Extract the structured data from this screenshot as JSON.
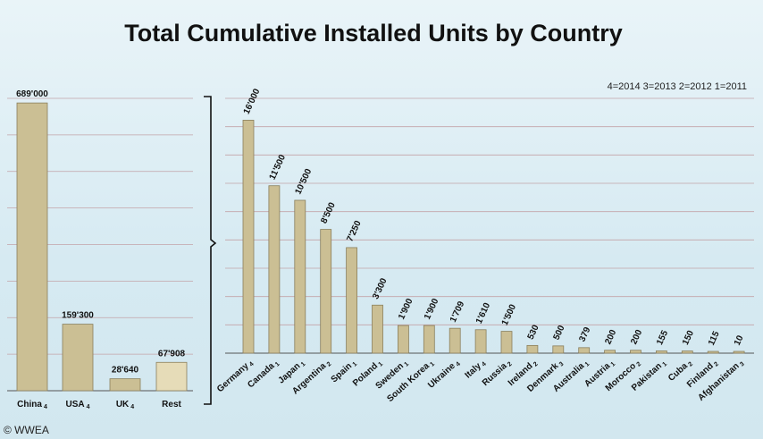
{
  "title": "Total Cumulative Installed Units by Country",
  "legend_text": "4=2014  3=2013  2=2012  1=2011",
  "copyright": "© WWEA",
  "colors": {
    "bar": "#cbbf94",
    "bar_stroke": "#8a7f5c",
    "rest_bar": "#e6dcb8",
    "grid": "#c3a3a8",
    "text": "#111111"
  },
  "chart_data": [
    {
      "type": "bar",
      "ylim": [
        0,
        700000
      ],
      "categories": [
        "China",
        "USA",
        "UK",
        "Rest"
      ],
      "subscripts": [
        "4",
        "4",
        "4",
        ""
      ],
      "values": [
        689000,
        159300,
        28640,
        67908
      ],
      "value_labels": [
        "689'000",
        "159'300",
        "28'640",
        "67'908"
      ],
      "grid": true
    },
    {
      "type": "bar",
      "ylim": [
        0,
        17500
      ],
      "categories": [
        "Germany",
        "Canada",
        "Japan",
        "Argentina",
        "Spain",
        "Poland",
        "Sweden",
        "South Korea",
        "Ukraine",
        "Italy",
        "Russia",
        "Ireland",
        "Denmark",
        "Australia",
        "Austria",
        "Morocco",
        "Pakistan",
        "Cuba",
        "Finland",
        "Afghanistan"
      ],
      "subscripts": [
        "4",
        "1",
        "1",
        "2",
        "1",
        "1",
        "1",
        "1",
        "4",
        "4",
        "2",
        "2",
        "3",
        "1",
        "1",
        "2",
        "1",
        "2",
        "2",
        "3"
      ],
      "values": [
        16000,
        11500,
        10500,
        8500,
        7250,
        3300,
        1900,
        1900,
        1709,
        1610,
        1500,
        530,
        500,
        379,
        200,
        200,
        155,
        150,
        115,
        10
      ],
      "value_labels": [
        "16'000",
        "11'500",
        "10'500",
        "8'500",
        "7'250",
        "3'300",
        "1'900",
        "1'900",
        "1'709",
        "1'610",
        "1'500",
        "530",
        "500",
        "379",
        "200",
        "200",
        "155",
        "150",
        "115",
        "10"
      ],
      "grid": true
    }
  ]
}
